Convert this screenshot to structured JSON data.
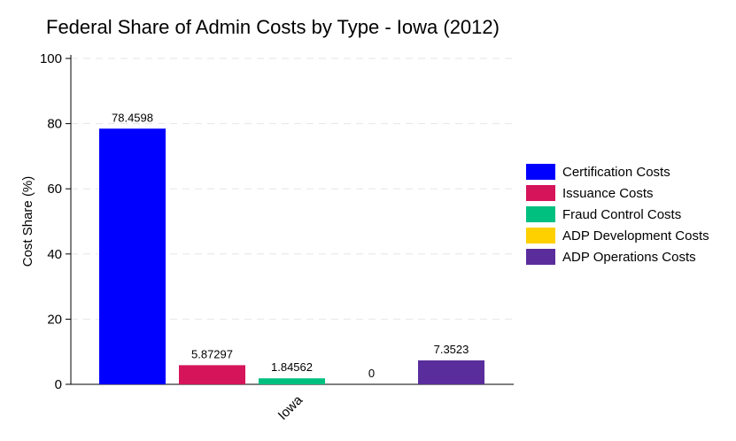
{
  "chart_data": {
    "type": "bar",
    "title": "Federal Share of Admin Costs by Type - Iowa (2012)",
    "xlabel": "",
    "ylabel": "Cost Share (%)",
    "categories": [
      "Iowa"
    ],
    "ylim": [
      0,
      100
    ],
    "yticks": [
      0,
      20,
      40,
      60,
      80,
      100
    ],
    "ytick_labels": [
      "0",
      "20",
      "40",
      "60",
      "80",
      "100"
    ],
    "grid": true,
    "legend_position": "right",
    "series": [
      {
        "name": "Certification Costs",
        "values": [
          78.4598
        ],
        "label": "78.4598",
        "color": "#0000ff"
      },
      {
        "name": "Issuance Costs",
        "values": [
          5.87297
        ],
        "label": "5.87297",
        "color": "#d5145a"
      },
      {
        "name": "Fraud Control Costs",
        "values": [
          1.84562
        ],
        "label": "1.84562",
        "color": "#00c080"
      },
      {
        "name": "ADP Development Costs",
        "values": [
          0
        ],
        "label": "0",
        "color": "#ffd000"
      },
      {
        "name": "ADP Operations Costs",
        "values": [
          7.3523
        ],
        "label": "7.3523",
        "color": "#5a2d9c"
      }
    ]
  }
}
